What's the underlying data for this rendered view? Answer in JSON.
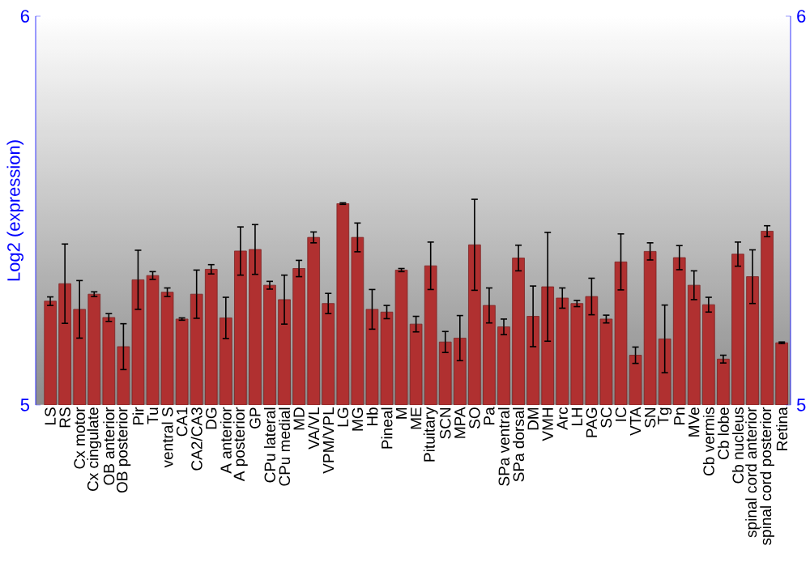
{
  "chart_data": {
    "type": "bar",
    "ylabel": "Log2 (expression)",
    "color": "#b03030",
    "categories": [
      "LS",
      "RS",
      "Cx motor",
      "Cx cingulate",
      "OB anterior",
      "OB posterior",
      "Pir",
      "Tu",
      "ventral S",
      "CA1",
      "CA2/CA3",
      "DG",
      "A anterior",
      "A posterior",
      "GP",
      "CPu lateral",
      "CPu medial",
      "MD",
      "VA/VL",
      "VPM/VPL",
      "LG",
      "MG",
      "Hb",
      "Pineal",
      "M",
      "ME",
      "Pituitary",
      "SCN",
      "MPA",
      "SO",
      "Pa",
      "SPa ventral",
      "SPa dorsal",
      "DM",
      "VMH",
      "Arc",
      "LH",
      "PAG",
      "SC",
      "IC",
      "VTA",
      "SN",
      "Tg",
      "Pn",
      "MVe",
      "Cb vermis",
      "Cb lobe",
      "Cb nucleus",
      "spinal cord anterior",
      "spinal cord posterior",
      "Retina"
    ],
    "values": [
      5.267,
      5.312,
      5.246,
      5.285,
      5.225,
      5.15,
      5.322,
      5.333,
      5.29,
      5.221,
      5.285,
      5.349,
      5.224,
      5.396,
      5.4,
      5.308,
      5.271,
      5.351,
      5.431,
      5.261,
      5.518,
      5.431,
      5.246,
      5.239,
      5.347,
      5.208,
      5.358,
      5.162,
      5.172,
      5.412,
      5.256,
      5.201,
      5.378,
      5.228,
      5.304,
      5.275,
      5.261,
      5.279,
      5.221,
      5.368,
      5.128,
      5.395,
      5.17,
      5.379,
      5.308,
      5.258,
      5.118,
      5.388,
      5.33,
      5.447,
      5.16
    ],
    "errors": [
      0.011,
      0.102,
      0.074,
      0.006,
      0.01,
      0.059,
      0.076,
      0.01,
      0.011,
      0.003,
      0.062,
      0.012,
      0.053,
      0.062,
      0.064,
      0.01,
      0.063,
      0.021,
      0.014,
      0.026,
      0.002,
      0.037,
      0.051,
      0.017,
      0.004,
      0.02,
      0.061,
      0.027,
      0.058,
      0.117,
      0.045,
      0.02,
      0.033,
      0.078,
      0.14,
      0.026,
      0.008,
      0.047,
      0.01,
      0.072,
      0.021,
      0.022,
      0.087,
      0.031,
      0.037,
      0.019,
      0.01,
      0.031,
      0.069,
      0.014,
      0.002
    ],
    "ylim": [
      5,
      6
    ],
    "yticks": [
      5,
      6
    ],
    "y2lim": [
      5,
      6
    ],
    "y2ticks": [
      5,
      6
    ]
  }
}
